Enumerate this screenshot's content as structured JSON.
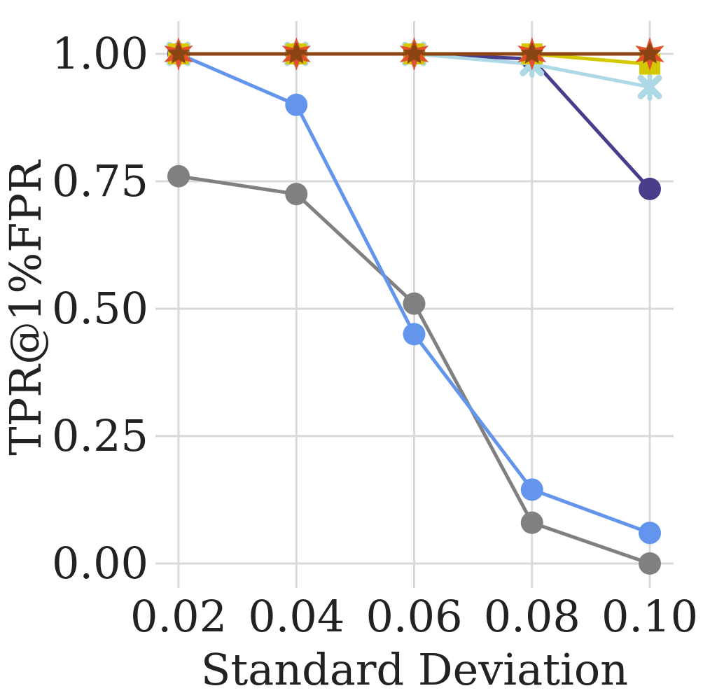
{
  "chart_data": {
    "type": "line",
    "xlabel": "Standard Deviation",
    "ylabel": "TPR@1%FPR",
    "x": [
      0.02,
      0.04,
      0.06,
      0.08,
      0.1
    ],
    "x_tick_labels": [
      "0.02",
      "0.04",
      "0.06",
      "0.08",
      "0.10"
    ],
    "y_tick_values": [
      0.0,
      0.25,
      0.5,
      0.75,
      1.0
    ],
    "y_tick_labels": [
      "0.00",
      "0.25",
      "0.50",
      "0.75",
      "1.00"
    ],
    "xlim": [
      0.02,
      0.1
    ],
    "ylim": [
      0.0,
      1.0
    ],
    "grid": true,
    "legend": "none",
    "series": [
      {
        "color": "#808080",
        "marker": "circle",
        "values": [
          0.76,
          0.725,
          0.51,
          0.08,
          0.0
        ]
      },
      {
        "color": "#6495ed",
        "marker": "circle",
        "values": [
          1.0,
          0.9,
          0.45,
          0.145,
          0.06
        ]
      },
      {
        "color": "#483d8b",
        "marker": "circle",
        "values": [
          1.0,
          1.0,
          1.0,
          0.99,
          0.735
        ]
      },
      {
        "color": "#add8e6",
        "marker": "x",
        "values": [
          1.0,
          1.0,
          1.0,
          0.98,
          0.935
        ]
      },
      {
        "color": "#d4c800",
        "marker": "square",
        "values": [
          1.0,
          1.0,
          1.0,
          1.0,
          0.98
        ]
      },
      {
        "color": "#8b4513",
        "marker": "star",
        "values": [
          1.0,
          1.0,
          1.0,
          1.0,
          1.0
        ]
      }
    ]
  }
}
